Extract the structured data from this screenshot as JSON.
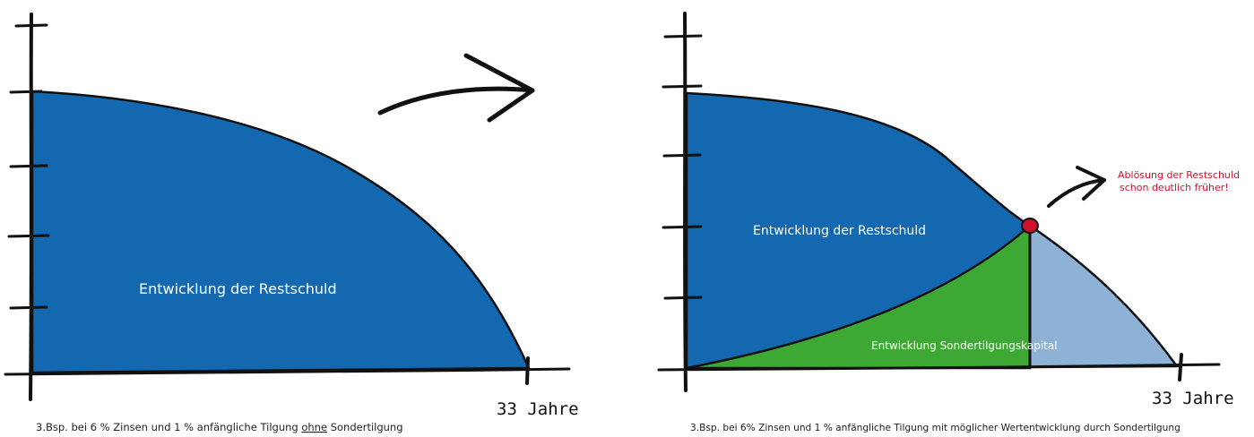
{
  "colors": {
    "debt_blue": "#1468b0",
    "special_green": "#3ea834",
    "light_blue": "#8db2d6",
    "axis_black": "#111111",
    "note_red": "#d6102b",
    "dot_red": "#d0102a"
  },
  "left_panel": {
    "area_label": "Entwicklung der Restschuld",
    "axis_end_label": "33 Jahre",
    "caption_prefix": "3.Bsp. bei 6 % Zinsen und 1 % anfängliche Tilgung ",
    "caption_underlined": "ohne",
    "caption_suffix": " Sondertilgung"
  },
  "arrow_between": {
    "icon": "curved-arrow-right-icon"
  },
  "right_panel": {
    "debt_label": "Entwicklung der Restschuld",
    "special_label": "Entwicklung Sondertilgungskapital",
    "axis_end_label": "33 Jahre",
    "note_line1": "Ablösung der Restschuld",
    "note_line2": "schon deutlich früher!",
    "caption": "3.Bsp. bei 6% Zinsen und 1 % anfängliche Tilgung mit möglicher Wertentwicklung durch Sondertilgung"
  }
}
